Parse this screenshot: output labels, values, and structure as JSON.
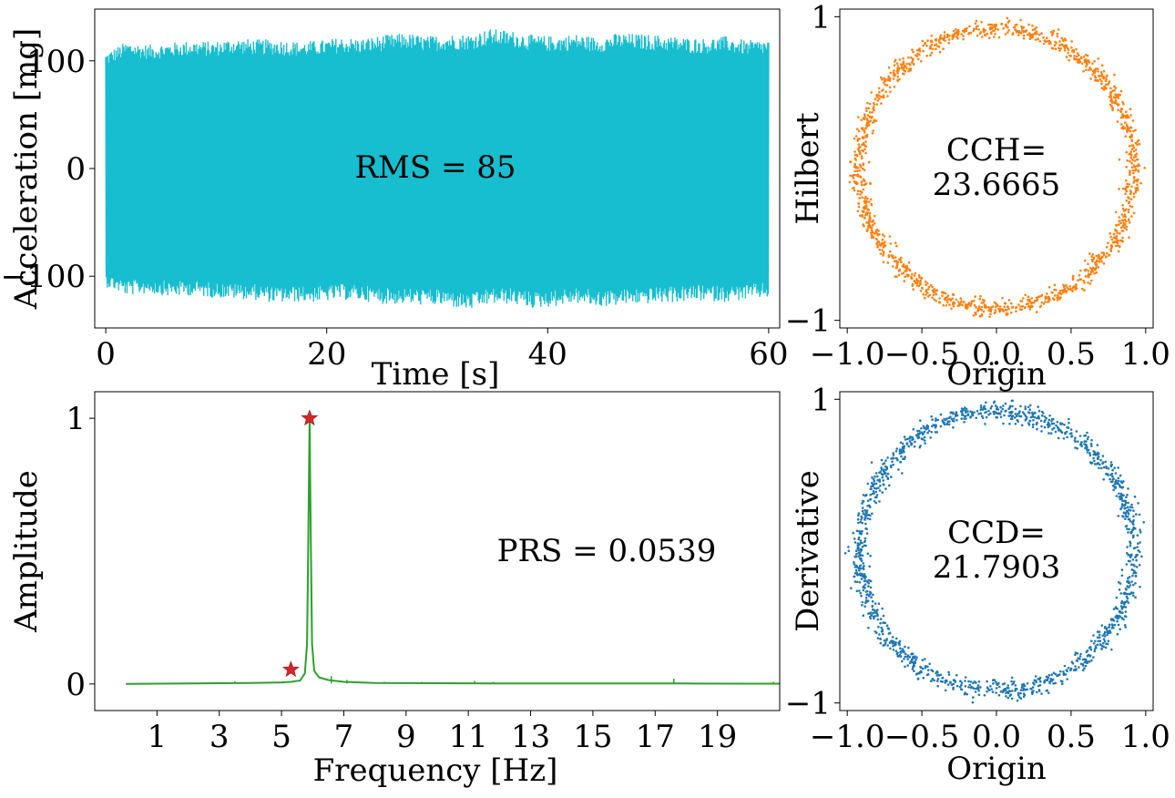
{
  "chart_data": [
    {
      "id": "time",
      "type": "line",
      "xlabel": "Time [s]",
      "ylabel": "Acceleration [mg]",
      "xlim": [
        -1,
        61
      ],
      "ylim": [
        -148,
        148
      ],
      "xticks": [
        0,
        20,
        40,
        60
      ],
      "yticks": [
        -100,
        0,
        100
      ],
      "ytick_labels": [
        "−100",
        "0",
        "100"
      ],
      "annotation": "RMS = 85",
      "series": [
        {
          "color": "#17becf",
          "x_start": 0,
          "x_end": 60,
          "envelope_upper": [
            108,
            118,
            115,
            117,
            119,
            118,
            121,
            120,
            120,
            118,
            119,
            122,
            121,
            124,
            126,
            123,
            125,
            125,
            130,
            128,
            124,
            123,
            125,
            122,
            126,
            125,
            124,
            122,
            121,
            123,
            119,
            120
          ],
          "envelope_lower": [
            -110,
            -118,
            -116,
            -119,
            -118,
            -120,
            -121,
            -122,
            -125,
            -124,
            -124,
            -122,
            -123,
            -126,
            -126,
            -127,
            -128,
            -132,
            -126,
            -126,
            -130,
            -128,
            -125,
            -129,
            -127,
            -126,
            -125,
            -124,
            -123,
            -124,
            -122,
            -120
          ]
        }
      ]
    },
    {
      "id": "hilbert",
      "type": "scatter",
      "xlabel": "Origin",
      "ylabel": "Hilbert",
      "xlim": [
        -1.05,
        1.05
      ],
      "ylim": [
        -1.05,
        1.05
      ],
      "xticks": [
        -1.0,
        -0.5,
        0.0,
        0.5,
        1.0
      ],
      "xtick_labels": [
        "−1.0",
        "−0.5",
        "0.0",
        "0.5",
        "1.0"
      ],
      "yticks": [
        -1,
        1
      ],
      "ytick_labels": [
        "−1",
        "1"
      ],
      "annotation_line1": "CCH=",
      "annotation_line2": "23.6665",
      "series": [
        {
          "color": "#ff7f0e",
          "shape": "ring",
          "radius": 0.92,
          "spread": 0.045,
          "count": 1400
        }
      ]
    },
    {
      "id": "spectrum",
      "type": "line",
      "xlabel": "Frequency [Hz]",
      "ylabel": "Amplitude",
      "xlim": [
        -1,
        21
      ],
      "ylim": [
        -0.1,
        1.1
      ],
      "xticks": [
        1,
        3,
        5,
        7,
        9,
        11,
        13,
        15,
        17,
        19
      ],
      "yticks": [
        0,
        1
      ],
      "annotation": "PRS = 0.0539",
      "series": [
        {
          "color": "#2ca02c",
          "x": [
            0.0,
            2.0,
            4.0,
            5.0,
            5.3,
            5.6,
            5.75,
            5.82,
            5.86,
            5.9,
            5.94,
            5.98,
            6.05,
            6.2,
            6.5,
            7.0,
            8.0,
            10.0,
            12.0,
            14.0,
            16.0,
            17.6,
            18.0,
            20.0,
            21.0
          ],
          "y": [
            0.0,
            0.002,
            0.004,
            0.006,
            0.008,
            0.013,
            0.04,
            0.15,
            0.55,
            1.0,
            0.55,
            0.15,
            0.05,
            0.025,
            0.015,
            0.008,
            0.004,
            0.003,
            0.002,
            0.002,
            0.002,
            0.002,
            0.002,
            0.001,
            0.001
          ],
          "spikes": [
            {
              "x": 3.5,
              "y": 0.01
            },
            {
              "x": 6.6,
              "y": 0.03
            },
            {
              "x": 7.1,
              "y": 0.015
            },
            {
              "x": 8.3,
              "y": 0.008
            },
            {
              "x": 9.5,
              "y": 0.008
            },
            {
              "x": 11.2,
              "y": 0.012
            },
            {
              "x": 11.8,
              "y": 0.008
            },
            {
              "x": 17.6,
              "y": 0.02
            },
            {
              "x": 20.8,
              "y": 0.008
            }
          ]
        }
      ],
      "markers": [
        {
          "x": 5.3,
          "y": 0.054,
          "color": "#d62728",
          "symbol": "star"
        },
        {
          "x": 5.9,
          "y": 1.0,
          "color": "#d62728",
          "symbol": "star"
        }
      ]
    },
    {
      "id": "derivative",
      "type": "scatter",
      "xlabel": "Origin",
      "ylabel": "Derivative",
      "xlim": [
        -1.05,
        1.05
      ],
      "ylim": [
        -1.05,
        1.05
      ],
      "xticks": [
        -1.0,
        -0.5,
        0.0,
        0.5,
        1.0
      ],
      "xtick_labels": [
        "−1.0",
        "−0.5",
        "0.0",
        "0.5",
        "1.0"
      ],
      "yticks": [
        -1,
        1
      ],
      "ytick_labels": [
        "−1",
        "1"
      ],
      "annotation_line1": "CCD=",
      "annotation_line2": "21.7903",
      "series": [
        {
          "color": "#1f77b4",
          "shape": "ring",
          "radius": 0.92,
          "spread": 0.05,
          "count": 1400
        }
      ]
    }
  ]
}
